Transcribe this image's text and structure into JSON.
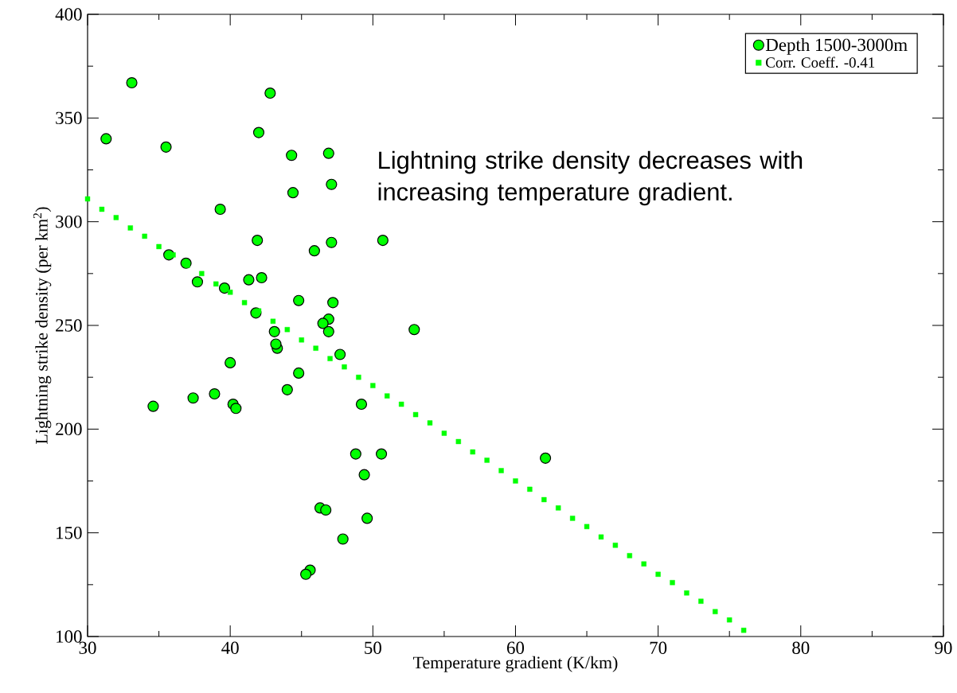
{
  "chart_data": {
    "type": "scatter",
    "xlabel": "Temperature gradient (K/km)",
    "ylabel": "Lightning strike density (per km$^{2}$)",
    "xlim": [
      30,
      90
    ],
    "ylim": [
      100,
      400
    ],
    "xticks": [
      30,
      40,
      50,
      60,
      70,
      80,
      90
    ],
    "yticks": [
      100,
      150,
      200,
      250,
      300,
      350,
      400
    ],
    "grid": false,
    "legend": "top right",
    "annotations": [
      "Lightning strike density decreases with increasing temperature gradient."
    ],
    "series": [
      {
        "name": "Depth 1500-3000m",
        "color": "#00ff00",
        "marker": "circle",
        "x": [
          33.1,
          31.3,
          35.5,
          42.8,
          42.0,
          44.3,
          46.9,
          44.4,
          47.1,
          39.3,
          41.9,
          47.1,
          50.7,
          45.9,
          35.7,
          36.9,
          37.7,
          39.6,
          41.3,
          42.2,
          44.8,
          47.2,
          41.8,
          46.9,
          46.5,
          43.1,
          46.9,
          52.9,
          43.3,
          43.2,
          47.7,
          40.0,
          44.8,
          44.0,
          37.4,
          38.9,
          34.6,
          40.2,
          40.4,
          49.2,
          48.8,
          50.6,
          62.1,
          49.4,
          46.3,
          46.7,
          49.6,
          47.9,
          45.6,
          45.3
        ],
        "values": [
          367,
          340,
          336,
          362,
          343,
          332,
          333,
          314,
          318,
          306,
          291,
          290,
          291,
          286,
          284,
          280,
          271,
          268,
          272,
          273,
          262,
          261,
          256,
          253,
          251,
          247,
          247,
          248,
          239,
          241,
          236,
          232,
          227,
          219,
          215,
          217,
          211,
          212,
          210,
          212,
          188,
          188,
          186,
          178,
          162,
          161,
          157,
          147,
          132,
          130
        ]
      },
      {
        "name": "Corr. Coeff. -0.41",
        "color": "#00ff00",
        "marker": "square",
        "x": [
          30,
          31,
          32,
          33,
          34,
          35,
          36,
          37,
          38,
          39,
          40,
          41,
          42,
          43,
          44,
          45,
          46,
          47,
          48,
          49,
          50,
          51,
          52,
          53,
          54,
          55,
          56,
          57,
          58,
          59,
          60,
          61,
          62,
          63,
          64,
          65,
          66,
          67,
          68,
          69,
          70,
          71,
          72,
          73,
          74,
          75,
          76
        ],
        "values": [
          311,
          306,
          302,
          297,
          293,
          288,
          284,
          279,
          275,
          270,
          266,
          261,
          257,
          252,
          248,
          243,
          239,
          234,
          230,
          225,
          221,
          216,
          212,
          207,
          203,
          198,
          194,
          189,
          185,
          180,
          175,
          171,
          166,
          162,
          157,
          153,
          148,
          144,
          139,
          135,
          130,
          126,
          121,
          117,
          112,
          108,
          103
        ]
      }
    ]
  }
}
